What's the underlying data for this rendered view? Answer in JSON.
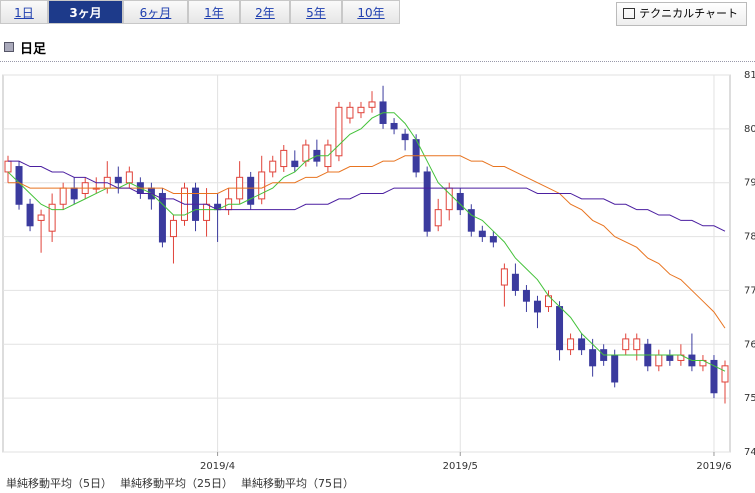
{
  "tabs": [
    "1日",
    "3ヶ月",
    "6ヶ月",
    "1年",
    "2年",
    "5年",
    "10年"
  ],
  "active_tab": 1,
  "technical_button": "テクニカルチャート",
  "heading": "日足",
  "chart_data": {
    "type": "candlestick",
    "categories": [
      null,
      null,
      null,
      null,
      null,
      null,
      null,
      null,
      null,
      null,
      null,
      null,
      null,
      null,
      null,
      null,
      null,
      null,
      null,
      "2019/4",
      null,
      null,
      null,
      null,
      null,
      null,
      null,
      null,
      null,
      null,
      null,
      null,
      null,
      null,
      null,
      null,
      null,
      null,
      null,
      null,
      null,
      "2019/5",
      null,
      null,
      null,
      null,
      null,
      null,
      null,
      null,
      null,
      null,
      null,
      null,
      null,
      null,
      null,
      null,
      null,
      null,
      null,
      null,
      null,
      null,
      "2019/6",
      null
    ],
    "open": [
      79.2,
      79.3,
      78.6,
      78.3,
      78.1,
      78.6,
      78.9,
      78.8,
      78.9,
      78.9,
      79.1,
      79.0,
      79.0,
      78.9,
      78.8,
      78.0,
      78.3,
      78.9,
      78.3,
      78.6,
      78.5,
      78.7,
      79.1,
      78.7,
      79.2,
      79.3,
      79.4,
      79.4,
      79.6,
      79.3,
      79.5,
      80.2,
      80.3,
      80.4,
      80.5,
      80.1,
      79.9,
      79.8,
      79.2,
      78.2,
      78.5,
      78.8,
      78.5,
      78.1,
      78.0,
      77.1,
      77.3,
      77.0,
      76.8,
      76.7,
      76.7,
      75.9,
      76.1,
      75.9,
      75.9,
      75.8,
      75.9,
      75.9,
      76.0,
      75.6,
      75.8,
      75.7,
      75.8,
      75.6,
      75.7,
      75.3
    ],
    "high": [
      79.5,
      79.4,
      78.7,
      78.5,
      78.8,
      79.0,
      79.1,
      79.1,
      79.1,
      79.4,
      79.3,
      79.3,
      79.1,
      79.0,
      78.9,
      78.4,
      79.0,
      79.0,
      78.9,
      78.8,
      78.9,
      79.4,
      79.2,
      79.5,
      79.5,
      79.7,
      79.6,
      79.8,
      79.8,
      79.8,
      80.5,
      80.5,
      80.5,
      80.7,
      80.8,
      80.2,
      80.0,
      79.9,
      79.3,
      78.7,
      79.0,
      78.9,
      78.6,
      78.2,
      78.1,
      77.5,
      77.5,
      77.1,
      76.9,
      77.0,
      76.8,
      76.2,
      76.2,
      76.1,
      76.0,
      75.9,
      76.2,
      76.2,
      76.1,
      75.9,
      75.9,
      76.0,
      76.2,
      75.8,
      75.8,
      75.7
    ],
    "low": [
      79.0,
      78.5,
      78.1,
      77.7,
      77.9,
      78.5,
      78.6,
      78.7,
      78.8,
      78.8,
      78.8,
      78.9,
      78.7,
      78.5,
      77.8,
      77.5,
      78.2,
      78.1,
      78.0,
      77.9,
      78.4,
      78.6,
      78.5,
      78.6,
      79.1,
      79.2,
      79.2,
      79.3,
      79.3,
      79.2,
      79.4,
      80.1,
      80.2,
      80.3,
      80.0,
      79.9,
      79.6,
      79.1,
      78.0,
      78.1,
      78.3,
      78.4,
      78.0,
      77.9,
      77.8,
      76.7,
      76.9,
      76.6,
      76.3,
      76.6,
      75.7,
      75.8,
      75.8,
      75.4,
      75.6,
      75.2,
      75.8,
      75.7,
      75.5,
      75.5,
      75.6,
      75.6,
      75.5,
      75.5,
      75.0,
      74.9
    ],
    "close": [
      79.4,
      78.6,
      78.2,
      78.4,
      78.6,
      78.9,
      78.7,
      79.0,
      78.9,
      79.1,
      79.0,
      79.2,
      78.8,
      78.7,
      77.9,
      78.3,
      78.9,
      78.3,
      78.6,
      78.5,
      78.7,
      79.1,
      78.6,
      79.2,
      79.4,
      79.6,
      79.3,
      79.7,
      79.4,
      79.7,
      80.4,
      80.4,
      80.4,
      80.5,
      80.1,
      80.0,
      79.8,
      79.2,
      78.1,
      78.5,
      78.9,
      78.5,
      78.1,
      78.0,
      77.9,
      77.4,
      77.0,
      76.8,
      76.6,
      76.9,
      75.9,
      76.1,
      75.9,
      75.6,
      75.7,
      75.3,
      76.1,
      76.1,
      75.6,
      75.8,
      75.7,
      75.8,
      75.6,
      75.7,
      75.1,
      75.6
    ],
    "up_color": "#e0433a",
    "down_color": "#3b3b9e",
    "series": [
      {
        "name": "単純移動平均（5日）",
        "color": "#44c23a",
        "values": [
          79.2,
          79.0,
          78.8,
          78.6,
          78.5,
          78.5,
          78.6,
          78.7,
          78.8,
          78.9,
          78.9,
          79.0,
          78.9,
          78.8,
          78.6,
          78.4,
          78.4,
          78.5,
          78.5,
          78.5,
          78.6,
          78.6,
          78.7,
          78.8,
          78.9,
          79.1,
          79.2,
          79.4,
          79.5,
          79.5,
          79.7,
          79.9,
          80.0,
          80.2,
          80.3,
          80.3,
          80.1,
          79.8,
          79.4,
          79.0,
          78.8,
          78.6,
          78.4,
          78.3,
          78.1,
          77.9,
          77.6,
          77.4,
          77.2,
          76.9,
          76.7,
          76.5,
          76.2,
          76.0,
          75.8,
          75.8,
          75.8,
          75.8,
          75.8,
          75.8,
          75.8,
          75.8,
          75.7,
          75.7,
          75.6,
          75.5
        ]
      },
      {
        "name": "単純移動平均（25日）",
        "color": "#e87420",
        "values": [
          79.0,
          79.0,
          78.9,
          78.9,
          78.9,
          78.9,
          78.9,
          78.9,
          78.9,
          78.9,
          78.9,
          78.9,
          78.9,
          78.9,
          78.9,
          78.8,
          78.8,
          78.8,
          78.8,
          78.8,
          78.9,
          78.9,
          78.9,
          78.9,
          79.0,
          79.0,
          79.0,
          79.1,
          79.1,
          79.2,
          79.2,
          79.3,
          79.3,
          79.3,
          79.4,
          79.4,
          79.5,
          79.5,
          79.5,
          79.5,
          79.5,
          79.5,
          79.4,
          79.4,
          79.3,
          79.3,
          79.2,
          79.1,
          79.0,
          78.9,
          78.8,
          78.6,
          78.5,
          78.3,
          78.2,
          78.0,
          77.9,
          77.8,
          77.6,
          77.5,
          77.3,
          77.2,
          77.0,
          76.8,
          76.6,
          76.3
        ]
      },
      {
        "name": "単純移動平均（75日）",
        "color": "#4b1fa0",
        "values": [
          79.4,
          79.4,
          79.3,
          79.3,
          79.2,
          79.2,
          79.1,
          79.1,
          79.0,
          79.0,
          78.9,
          78.9,
          78.8,
          78.8,
          78.7,
          78.7,
          78.6,
          78.6,
          78.6,
          78.5,
          78.5,
          78.5,
          78.5,
          78.5,
          78.5,
          78.5,
          78.5,
          78.6,
          78.6,
          78.6,
          78.7,
          78.7,
          78.8,
          78.8,
          78.8,
          78.9,
          78.9,
          78.9,
          78.9,
          78.9,
          78.9,
          78.9,
          78.9,
          78.9,
          78.9,
          78.9,
          78.9,
          78.9,
          78.8,
          78.8,
          78.8,
          78.8,
          78.7,
          78.7,
          78.7,
          78.6,
          78.6,
          78.5,
          78.5,
          78.4,
          78.4,
          78.3,
          78.3,
          78.2,
          78.2,
          78.1
        ]
      }
    ],
    "ylim": [
      74,
      81
    ],
    "yticks": [
      74,
      75,
      76,
      77,
      78,
      79,
      80,
      81
    ],
    "grid": true
  }
}
